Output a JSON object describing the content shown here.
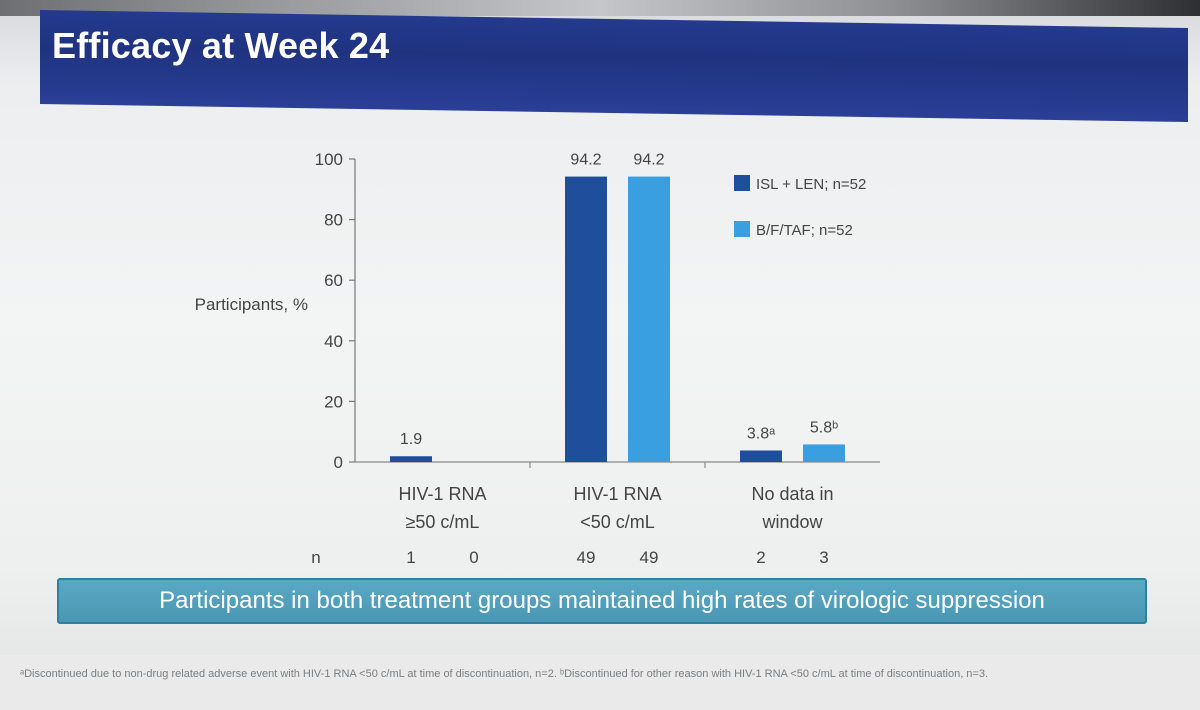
{
  "slide": {
    "title": "Efficacy at Week 24",
    "banner": "Participants in both treatment groups maintained high rates of virologic suppression",
    "footnote": "ᵃDiscontinued due to non-drug related adverse event with HIV-1 RNA <50 c/mL at time of discontinuation, n=2. ᵇDiscontinued for other reason with HIV-1 RNA <50 c/mL at time of discontinuation, n=3."
  },
  "colors": {
    "title_bar": "#22378a",
    "isl_len": "#1f4e9c",
    "bftaf": "#3a9fe0",
    "banner": "#4ea0bd"
  },
  "chart_data": {
    "type": "bar",
    "ylabel": "Participants, %",
    "ylim": [
      0,
      100
    ],
    "yticks": [
      0,
      20,
      40,
      60,
      80,
      100
    ],
    "categories": [
      [
        "HIV-1 RNA",
        "≥50 c/mL"
      ],
      [
        "HIV-1 RNA",
        "<50 c/mL"
      ],
      [
        "No data in",
        "window"
      ]
    ],
    "series": [
      {
        "name": "ISL + LEN; n=52",
        "color": "#1f4e9c",
        "values": [
          1.9,
          94.2,
          3.8
        ],
        "labels": [
          "1.9",
          "94.2",
          "3.8ᵃ"
        ],
        "n": [
          "1",
          "49",
          "2"
        ]
      },
      {
        "name": "B/F/TAF; n=52",
        "color": "#3a9fe0",
        "values": [
          0,
          94.2,
          5.8
        ],
        "labels": [
          "",
          "94.2",
          "5.8ᵇ"
        ],
        "n": [
          "0",
          "49",
          "3"
        ]
      }
    ],
    "n_label": "n",
    "legend_position": "top-right",
    "grid": false
  }
}
